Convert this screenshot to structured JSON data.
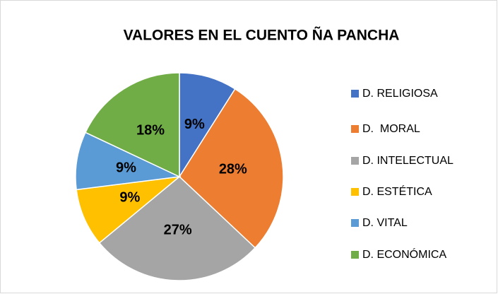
{
  "chart_data": {
    "type": "pie",
    "title": "VALORES EN EL CUENTO ÑA PANCHA",
    "categories": [
      "D. RELIGIOSA",
      "D.  MORAL",
      "D. INTELECTUAL",
      "D. ESTÉTICA",
      "D. VITAL",
      "D. ECONÓMICA"
    ],
    "values": [
      9,
      28,
      27,
      9,
      9,
      18
    ],
    "value_labels": [
      "9%",
      "28%",
      "27%",
      "9%",
      "9%",
      "18%"
    ],
    "colors": [
      "#4472c4",
      "#ed7d31",
      "#a5a5a5",
      "#ffc000",
      "#5b9bd5",
      "#70ad47"
    ],
    "legend": "right"
  }
}
